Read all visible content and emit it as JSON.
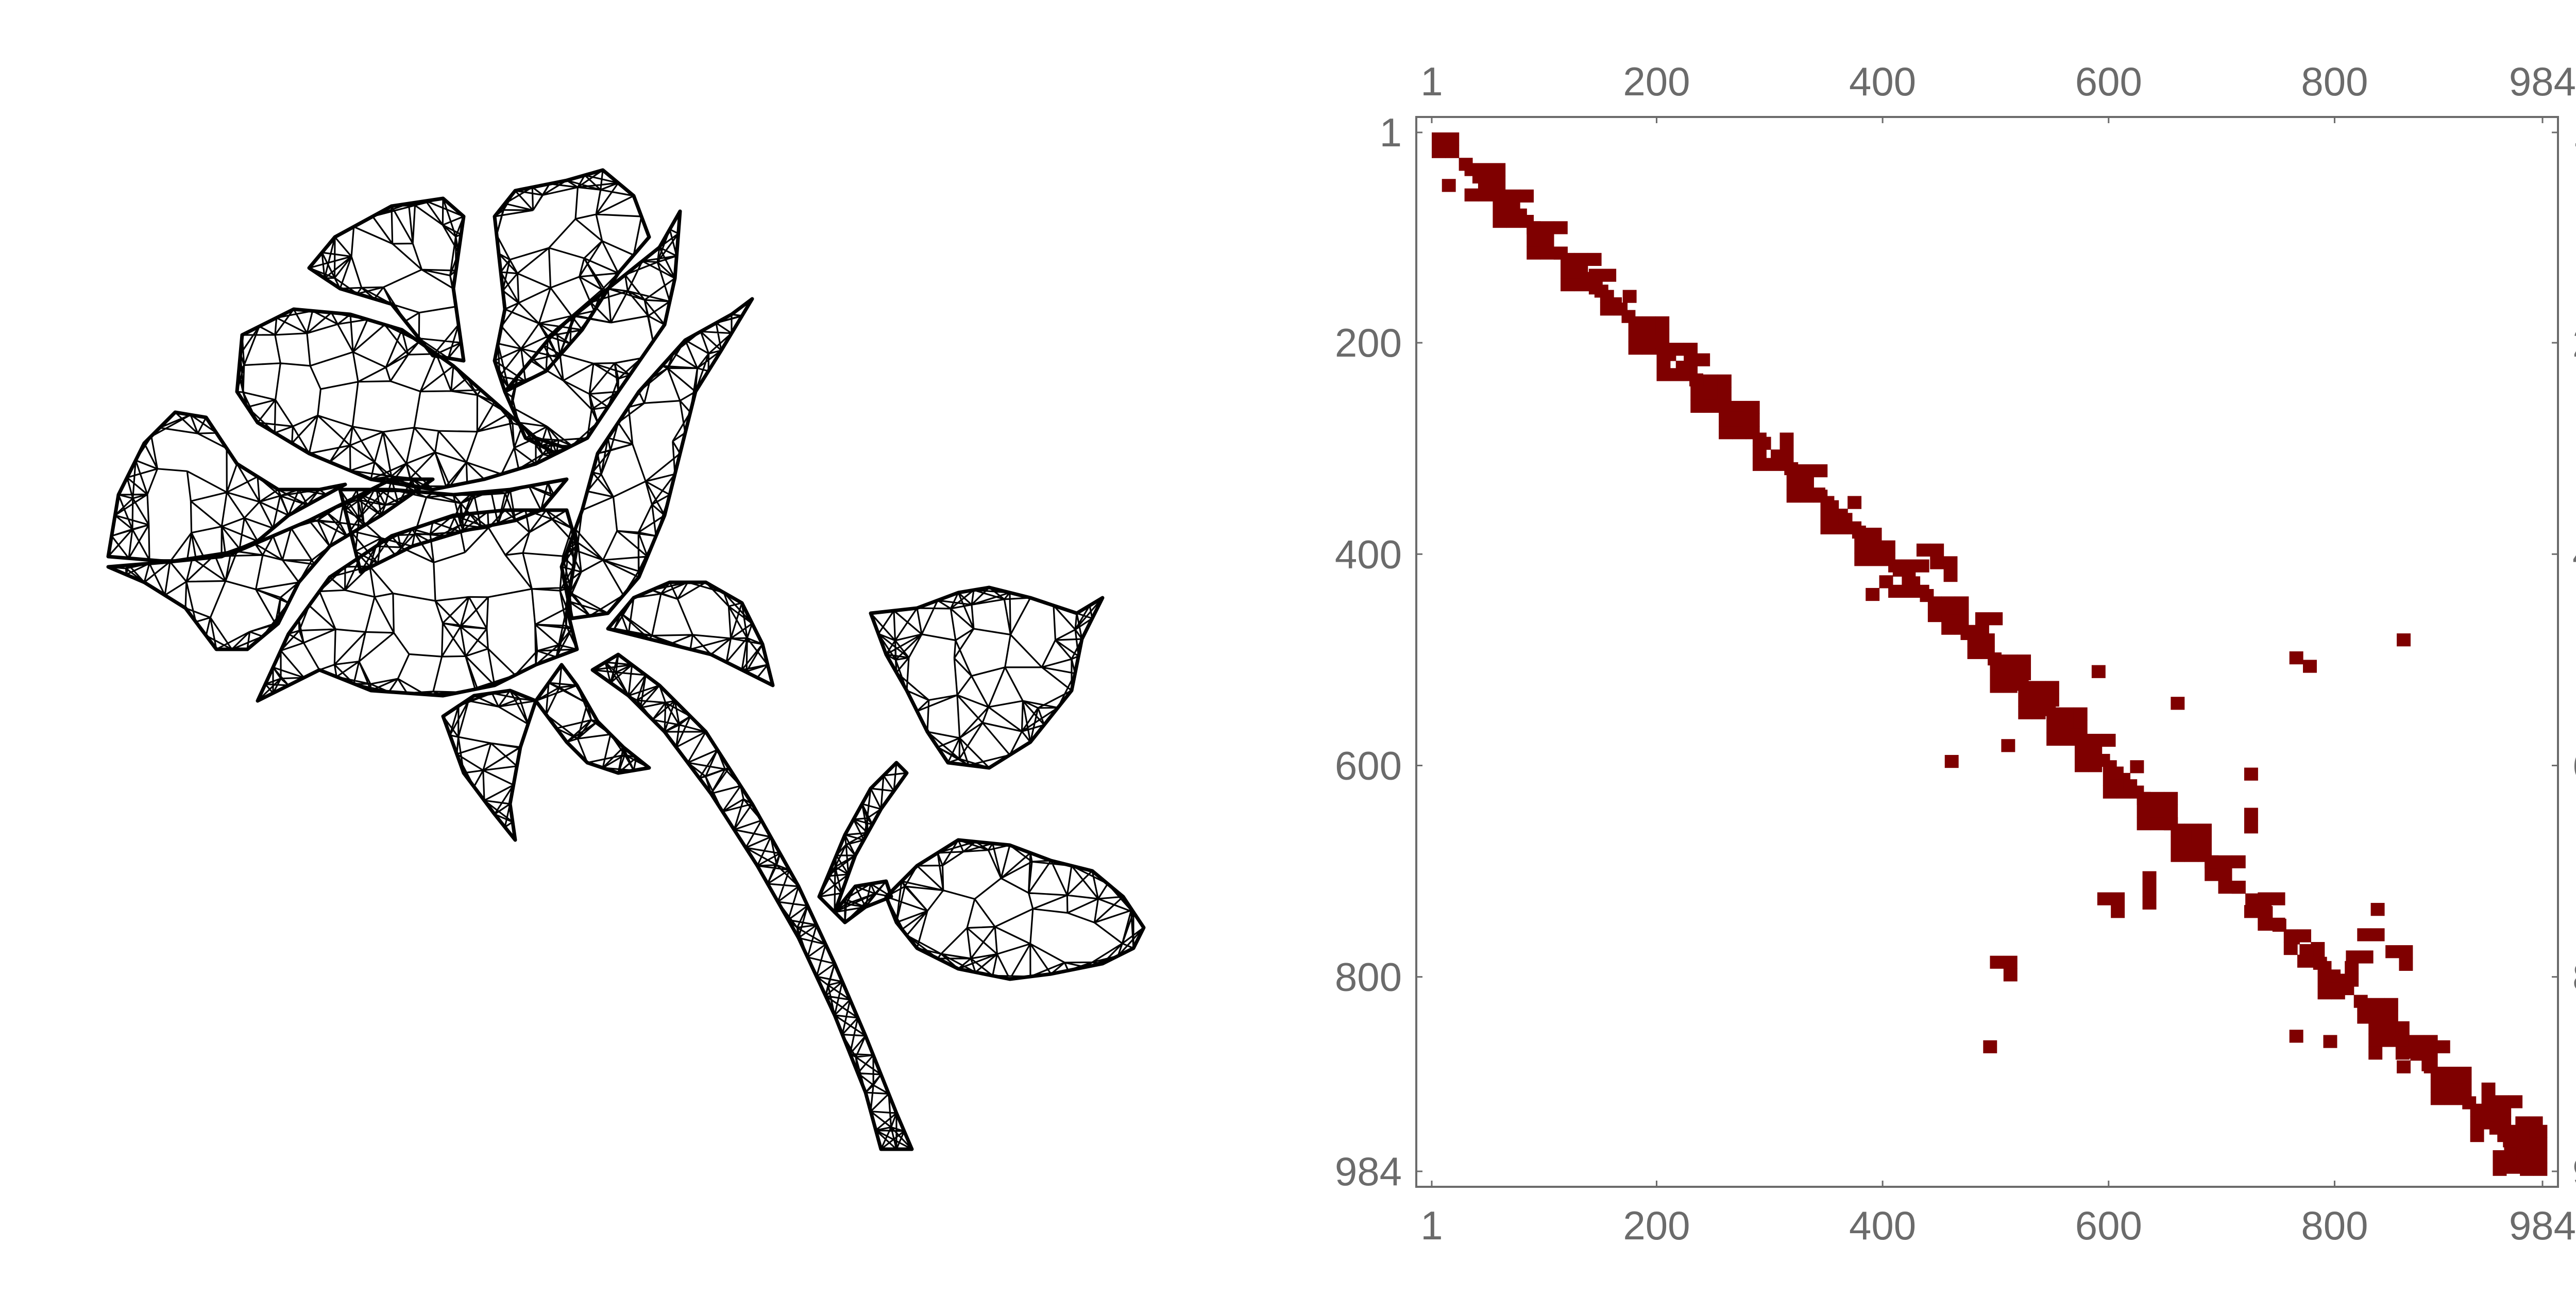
{
  "figure": {
    "left_panel": {
      "kind": "triangulated mesh",
      "subject": "rose-icon"
    },
    "right_panel": {
      "kind": "sparsity pattern"
    }
  },
  "chart_data": {
    "type": "heatmap",
    "matrix_size": 984,
    "xlim": [
      1,
      984
    ],
    "ylim": [
      1,
      984
    ],
    "y_axis_inverted": true,
    "grid": false,
    "ticks": [
      "1",
      "200",
      "400",
      "600",
      "800",
      "984"
    ],
    "tick_values": [
      1,
      200,
      400,
      600,
      800,
      984
    ],
    "nonzero_color": "#7f0000",
    "frame_color": "#6b6b6b",
    "diagonal_blocks": [
      [
        1,
        30
      ],
      [
        30,
        60
      ],
      [
        55,
        85
      ],
      [
        85,
        120
      ],
      [
        115,
        150
      ],
      [
        150,
        175
      ],
      [
        175,
        205
      ],
      [
        200,
        230
      ],
      [
        230,
        260
      ],
      [
        255,
        290
      ],
      [
        285,
        320
      ],
      [
        315,
        350
      ],
      [
        345,
        380
      ],
      [
        375,
        410
      ],
      [
        405,
        445
      ],
      [
        440,
        480
      ],
      [
        475,
        500
      ],
      [
        495,
        525
      ],
      [
        520,
        550
      ],
      [
        545,
        575
      ],
      [
        570,
        600
      ],
      [
        595,
        630
      ],
      [
        625,
        660
      ],
      [
        655,
        690
      ],
      [
        685,
        725
      ],
      [
        720,
        760
      ],
      [
        755,
        790
      ],
      [
        785,
        825
      ],
      [
        820,
        860
      ],
      [
        855,
        890
      ],
      [
        885,
        925
      ],
      [
        920,
        960
      ],
      [
        950,
        984
      ]
    ],
    "off_diagonal_blocks": [
      [
        10,
        25,
        45,
        70
      ],
      [
        45,
        60,
        10,
        25
      ],
      [
        130,
        150,
        140,
        165
      ],
      [
        150,
        165,
        170,
        180
      ],
      [
        210,
        230,
        235,
        255
      ],
      [
        390,
        420,
        430,
        460
      ],
      [
        420,
        440,
        385,
        405
      ],
      [
        455,
        475,
        470,
        500
      ],
      [
        505,
        520,
        585,
        600
      ],
      [
        535,
        550,
        655,
        665
      ],
      [
        575,
        590,
        505,
        520
      ],
      [
        590,
        605,
        455,
        470
      ],
      [
        590,
        610,
        720,
        740
      ],
      [
        620,
        650,
        700,
        720
      ],
      [
        700,
        740,
        630,
        650
      ],
      [
        720,
        740,
        590,
        615
      ],
      [
        475,
        490,
        855,
        870
      ],
      [
        500,
        515,
        760,
        780
      ],
      [
        775,
        790,
        810,
        835
      ],
      [
        730,
        770,
        820,
        850
      ],
      [
        780,
        800,
        495,
        520
      ],
      [
        860,
        875,
        465,
        500
      ],
      [
        850,
        865,
        760,
        775
      ],
      [
        855,
        870,
        790,
        805
      ],
      [
        830,
        880,
        830,
        870
      ],
      [
        860,
        880,
        890,
        905
      ],
      [
        900,
        940,
        930,
        960
      ],
      [
        940,
        984,
        940,
        984
      ],
      [
        920,
        984,
        960,
        984
      ],
      [
        770,
        790,
        845,
        870
      ],
      [
        640,
        660,
        720,
        735
      ],
      [
        480,
        500,
        760,
        775
      ]
    ]
  }
}
